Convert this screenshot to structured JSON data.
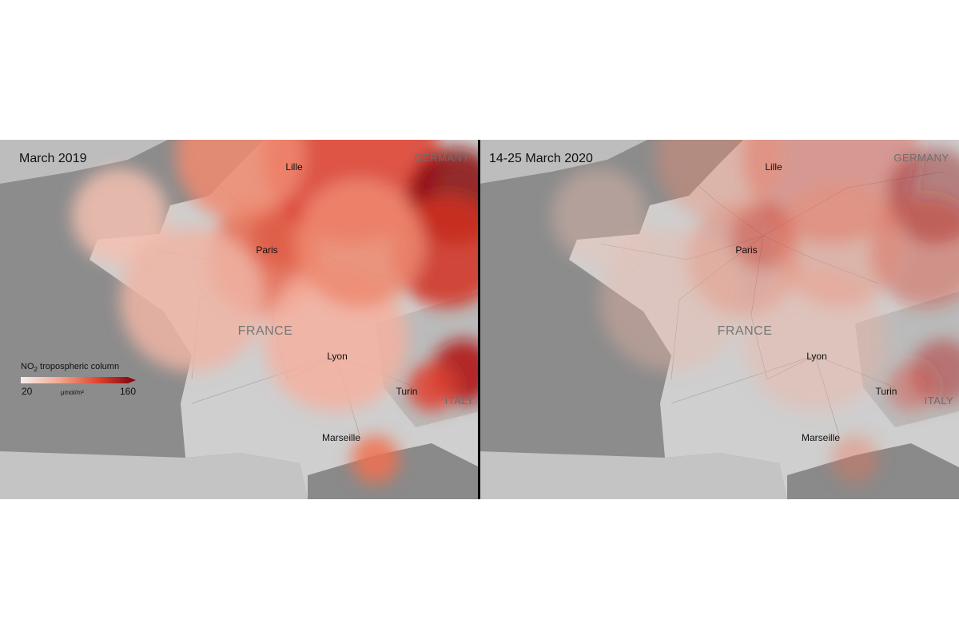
{
  "panels": [
    {
      "title": "March 2019",
      "intensity": 1
    },
    {
      "title": "14-25 March 2020",
      "intensity": 0.45
    }
  ],
  "place_labels": {
    "cities": [
      "Lille",
      "Paris",
      "Lyon",
      "Turin",
      "Marseille"
    ],
    "countries": [
      "GERMANY",
      "FRANCE",
      "ITALY"
    ]
  },
  "legend": {
    "title_parts": [
      "NO",
      "2",
      " tropospheric column"
    ],
    "min": 20,
    "max": 160,
    "unit": "μmol/m²",
    "colors": [
      "#f4f0ee",
      "#f2a88f",
      "#e0452e",
      "#7a0010"
    ]
  }
}
